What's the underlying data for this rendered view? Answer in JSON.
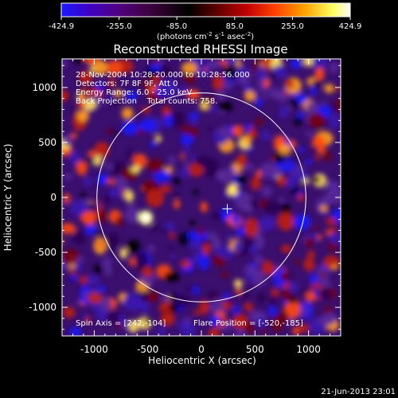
{
  "colorbar": {
    "ticks": [
      "-424.9",
      "-255.0",
      "-85.0",
      "85.0",
      "255.0",
      "424.9"
    ],
    "units_main": "(photons cm",
    "units_exp1": "-2",
    "units_mid": " s",
    "units_exp2": "-1",
    "units_end": " asec",
    "units_exp3": "-2",
    "units_close": ")",
    "stops": [
      "#1a1aff",
      "#4000c0",
      "#500080",
      "#400040",
      "#000000",
      "#600000",
      "#c00000",
      "#ff4000",
      "#ffa000",
      "#ffff60",
      "#ffffff"
    ]
  },
  "plot": {
    "title": "Reconstructed RHESSI Image",
    "xlabel": "Heliocentric X (arcsec)",
    "ylabel": "Heliocentric Y (arcsec)",
    "x_ticks": [
      "-1000",
      "-500",
      "0",
      "500",
      "1000"
    ],
    "y_ticks": [
      "1000",
      "500",
      "0",
      "-500",
      "-1000"
    ],
    "xlim": [
      -1300,
      1300
    ],
    "ylim": [
      -1260,
      1260
    ],
    "info": [
      "28-Nov-2004 10:28:20.000 to 10:28:56.000",
      "Detectors: 7F 8F 9F, Att 0",
      "Energy Range: 6.0 - 25.0 keV",
      "Back Projection    Total counts: 758."
    ],
    "spin_axis": "Spin Axis = [242,-104]",
    "flare_position": "Flare Position = [-520,-185]",
    "solar_radius_arcsec": 975,
    "crosshair": [
      242,
      -104
    ]
  },
  "footer": {
    "timestamp": "21-Jun-2013 23:01"
  }
}
